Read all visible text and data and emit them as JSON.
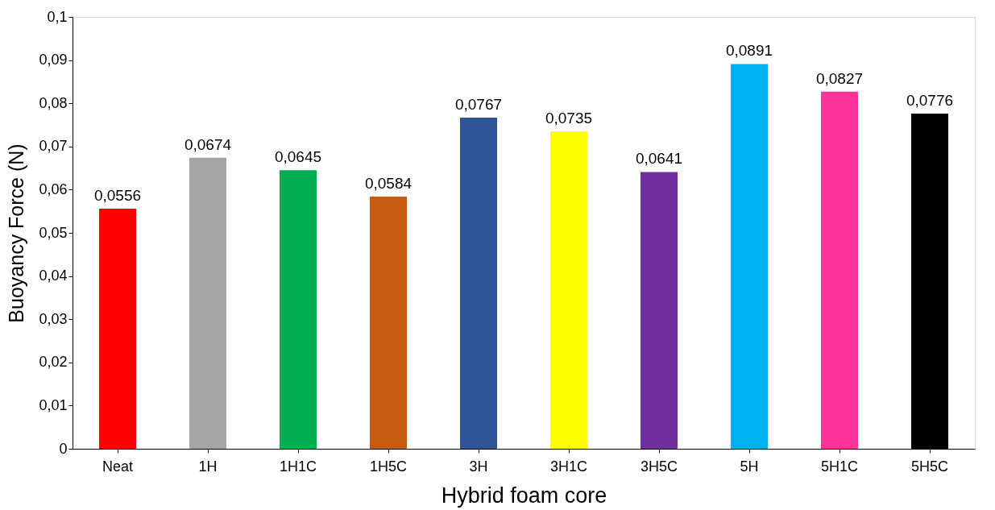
{
  "chart_data": {
    "type": "bar",
    "xlabel": "Hybrid foam core",
    "ylabel": "Buoyancy Force (N)",
    "categories": [
      "Neat",
      "1H",
      "1H1C",
      "1H5C",
      "3H",
      "3H1C",
      "3H5C",
      "5H",
      "5H1C",
      "5H5C"
    ],
    "values": [
      0.0556,
      0.0674,
      0.0645,
      0.0584,
      0.0767,
      0.0735,
      0.0641,
      0.0891,
      0.0827,
      0.0776
    ],
    "value_labels": [
      "0,0556",
      "0,0674",
      "0,0645",
      "0,0584",
      "0,0767",
      "0,0735",
      "0,0641",
      "0,0891",
      "0,0827",
      "0,0776"
    ],
    "colors": [
      "#ff0000",
      "#a5a5a5",
      "#00b050",
      "#c55a11",
      "#2f5597",
      "#ffff00",
      "#7030a0",
      "#00b0f0",
      "#ff3399",
      "#000000"
    ],
    "ylim": [
      0,
      0.1
    ],
    "yticks": [
      0,
      {
        "value": 0.01,
        "label": "0,01"
      },
      {
        "value": 0.02,
        "label": "0,02"
      },
      {
        "value": 0.03,
        "label": "0,03"
      },
      {
        "value": 0.04,
        "label": "0,04"
      },
      {
        "value": 0.05,
        "label": "0,05"
      },
      {
        "value": 0.06,
        "label": "0,06"
      },
      {
        "value": 0.07,
        "label": "0,07"
      },
      {
        "value": 0.08,
        "label": "0,08"
      },
      {
        "value": 0.09,
        "label": "0,09"
      },
      {
        "value": 0.1,
        "label": "0,1"
      }
    ],
    "grid": false,
    "legend": false
  }
}
